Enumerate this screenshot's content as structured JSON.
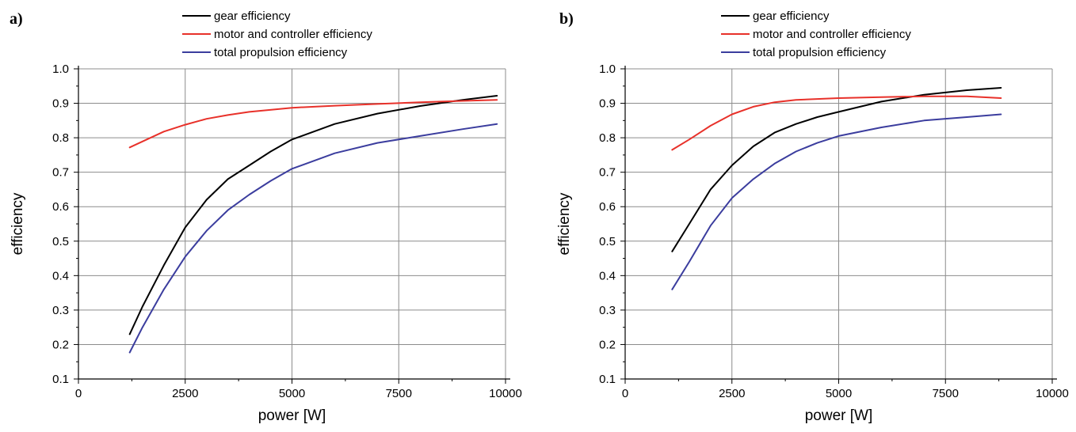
{
  "chart_data": [
    {
      "type": "line",
      "panel_label": "a)",
      "xlabel": "power [W]",
      "ylabel": "efficiency",
      "xlim": [
        0,
        10000
      ],
      "ylim": [
        0.1,
        1.0
      ],
      "xticks": [
        0,
        2500,
        5000,
        7500,
        10000
      ],
      "yticks": [
        0.1,
        0.2,
        0.3,
        0.4,
        0.5,
        0.6,
        0.7,
        0.8,
        0.9,
        1.0
      ],
      "ytick_labels": [
        "0.1",
        "0.2",
        "0.3",
        "0.4",
        "0.5",
        "0.6",
        "0.7",
        "0.8",
        "0.9",
        "1.0"
      ],
      "grid": true,
      "legend_position": "top-center",
      "series": [
        {
          "name": "gear efficiency",
          "color": "#000000",
          "points": [
            [
              1200,
              0.23
            ],
            [
              1500,
              0.31
            ],
            [
              2000,
              0.43
            ],
            [
              2500,
              0.54
            ],
            [
              3000,
              0.62
            ],
            [
              3500,
              0.68
            ],
            [
              4000,
              0.72
            ],
            [
              4500,
              0.76
            ],
            [
              5000,
              0.795
            ],
            [
              6000,
              0.84
            ],
            [
              7000,
              0.87
            ],
            [
              8000,
              0.892
            ],
            [
              9000,
              0.91
            ],
            [
              9800,
              0.922
            ]
          ]
        },
        {
          "name": "motor and controller efficiency",
          "color": "#e8312a",
          "points": [
            [
              1200,
              0.772
            ],
            [
              1600,
              0.795
            ],
            [
              2000,
              0.818
            ],
            [
              2500,
              0.838
            ],
            [
              3000,
              0.855
            ],
            [
              3500,
              0.866
            ],
            [
              4000,
              0.875
            ],
            [
              5000,
              0.887
            ],
            [
              6000,
              0.893
            ],
            [
              7000,
              0.898
            ],
            [
              8000,
              0.903
            ],
            [
              9000,
              0.907
            ],
            [
              9800,
              0.91
            ]
          ]
        },
        {
          "name": "total propulsion efficiency",
          "color": "#3b3d9e",
          "points": [
            [
              1200,
              0.177
            ],
            [
              1500,
              0.25
            ],
            [
              2000,
              0.36
            ],
            [
              2500,
              0.455
            ],
            [
              3000,
              0.53
            ],
            [
              3500,
              0.59
            ],
            [
              4000,
              0.635
            ],
            [
              4500,
              0.675
            ],
            [
              5000,
              0.71
            ],
            [
              6000,
              0.755
            ],
            [
              7000,
              0.785
            ],
            [
              8000,
              0.805
            ],
            [
              9000,
              0.825
            ],
            [
              9800,
              0.84
            ]
          ]
        }
      ]
    },
    {
      "type": "line",
      "panel_label": "b)",
      "xlabel": "power [W]",
      "ylabel": "efficiency",
      "xlim": [
        0,
        10000
      ],
      "ylim": [
        0.1,
        1.0
      ],
      "xticks": [
        0,
        2500,
        5000,
        7500,
        10000
      ],
      "yticks": [
        0.1,
        0.2,
        0.3,
        0.4,
        0.5,
        0.6,
        0.7,
        0.8,
        0.9,
        1.0
      ],
      "ytick_labels": [
        "0.1",
        "0.2",
        "0.3",
        "0.4",
        "0.5",
        "0.6",
        "0.7",
        "0.8",
        "0.9",
        "1.0"
      ],
      "grid": true,
      "legend_position": "top-center",
      "series": [
        {
          "name": "gear efficiency",
          "color": "#000000",
          "points": [
            [
              1100,
              0.47
            ],
            [
              1500,
              0.55
            ],
            [
              2000,
              0.65
            ],
            [
              2500,
              0.72
            ],
            [
              3000,
              0.775
            ],
            [
              3500,
              0.815
            ],
            [
              4000,
              0.84
            ],
            [
              4500,
              0.86
            ],
            [
              5000,
              0.875
            ],
            [
              6000,
              0.905
            ],
            [
              7000,
              0.925
            ],
            [
              8000,
              0.938
            ],
            [
              8800,
              0.945
            ]
          ]
        },
        {
          "name": "motor and controller efficiency",
          "color": "#e8312a",
          "points": [
            [
              1100,
              0.765
            ],
            [
              1500,
              0.795
            ],
            [
              2000,
              0.835
            ],
            [
              2500,
              0.868
            ],
            [
              3000,
              0.89
            ],
            [
              3500,
              0.903
            ],
            [
              4000,
              0.91
            ],
            [
              5000,
              0.915
            ],
            [
              6000,
              0.918
            ],
            [
              7000,
              0.92
            ],
            [
              8000,
              0.92
            ],
            [
              8800,
              0.915
            ]
          ]
        },
        {
          "name": "total propulsion efficiency",
          "color": "#3b3d9e",
          "points": [
            [
              1100,
              0.36
            ],
            [
              1500,
              0.44
            ],
            [
              2000,
              0.545
            ],
            [
              2500,
              0.625
            ],
            [
              3000,
              0.68
            ],
            [
              3500,
              0.725
            ],
            [
              4000,
              0.76
            ],
            [
              4500,
              0.785
            ],
            [
              5000,
              0.805
            ],
            [
              6000,
              0.83
            ],
            [
              7000,
              0.85
            ],
            [
              8000,
              0.86
            ],
            [
              8800,
              0.868
            ]
          ]
        }
      ]
    }
  ]
}
